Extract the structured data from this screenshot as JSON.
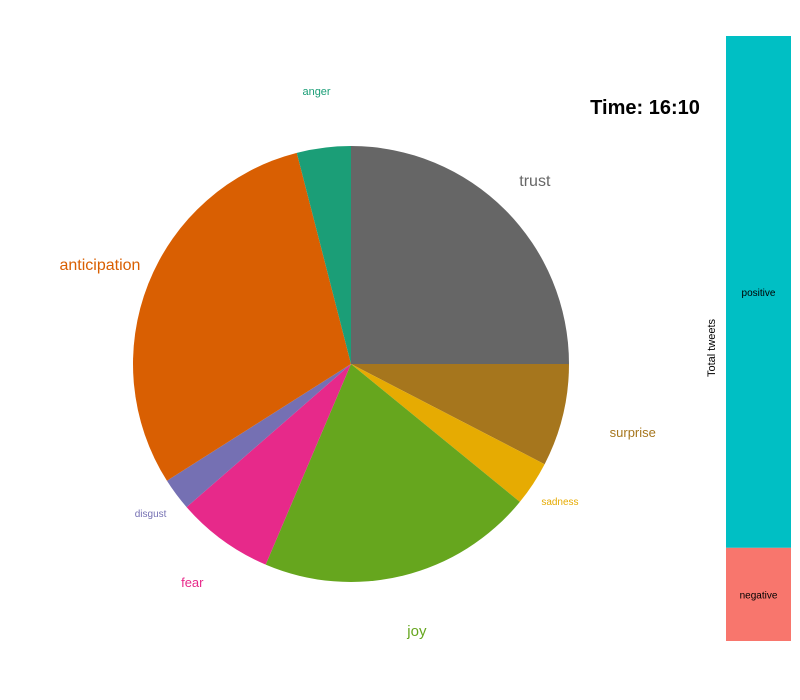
{
  "time_label": "Time: 16:10",
  "chart_data": [
    {
      "type": "pie",
      "title": "",
      "slices": [
        {
          "label": "trust",
          "value": 25.0,
          "color": "#666666"
        },
        {
          "label": "surprise",
          "value": 7.6,
          "color": "#A6761D"
        },
        {
          "label": "sadness",
          "value": 3.3,
          "color": "#E6AB02"
        },
        {
          "label": "joy",
          "value": 20.5,
          "color": "#66A61E"
        },
        {
          "label": "fear",
          "value": 7.2,
          "color": "#E7298A"
        },
        {
          "label": "disgust",
          "value": 2.4,
          "color": "#7570B3"
        },
        {
          "label": "anticipation",
          "value": 30.0,
          "color": "#D95F02"
        },
        {
          "label": "anger",
          "value": 4.0,
          "color": "#1B9E77"
        }
      ]
    },
    {
      "type": "bar",
      "stacked": true,
      "ylabel": "Total tweets",
      "segments": [
        {
          "label": "positive",
          "value": 0.846,
          "color": "#00BFC4"
        },
        {
          "label": "negative",
          "value": 0.154,
          "color": "#F8766D"
        }
      ]
    }
  ]
}
